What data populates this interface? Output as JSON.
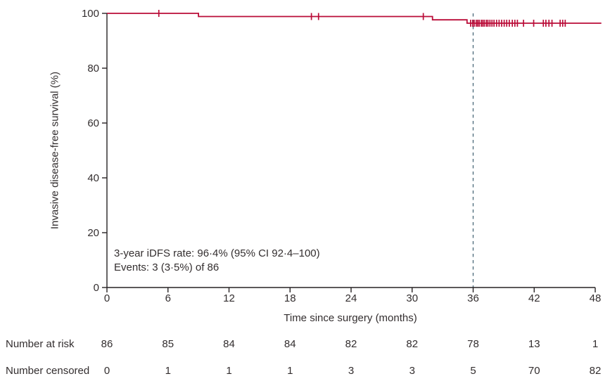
{
  "chart_data": {
    "type": "line",
    "subtype": "kaplan-meier-step",
    "title": "",
    "x_axis_label": "Time since surgery (months)",
    "y_axis_label": "Invasive disease-free survival (%)",
    "xlim": [
      0,
      48
    ],
    "ylim": [
      0,
      100
    ],
    "x_ticks": [
      0,
      6,
      12,
      18,
      24,
      30,
      36,
      42,
      48
    ],
    "y_ticks": [
      0,
      20,
      40,
      60,
      80,
      100
    ],
    "grid": false,
    "legend": "none",
    "annotations": {
      "line1": "3-year iDFS rate: 96·4% (95% CI 92·4–100)",
      "line2": "Events: 3 (3·5%) of 86"
    },
    "series": [
      {
        "name": "Invasive disease-free survival",
        "color": "#ba0c38",
        "step_points": [
          [
            0,
            100
          ],
          [
            9,
            100
          ],
          [
            9,
            98.85
          ],
          [
            32,
            98.85
          ],
          [
            32,
            97.65
          ],
          [
            35.4,
            97.65
          ],
          [
            35.4,
            96.4
          ],
          [
            48.6,
            96.4
          ]
        ],
        "censor_marks": [
          [
            5.1,
            100
          ],
          [
            20.1,
            98.85
          ],
          [
            20.8,
            98.85
          ],
          [
            31.1,
            98.85
          ],
          [
            35.75,
            96.4
          ],
          [
            35.95,
            96.4
          ],
          [
            36.1,
            96.4
          ],
          [
            36.3,
            96.4
          ],
          [
            36.45,
            96.4
          ],
          [
            36.6,
            96.4
          ],
          [
            36.8,
            96.4
          ],
          [
            36.95,
            96.4
          ],
          [
            37.1,
            96.4
          ],
          [
            37.3,
            96.4
          ],
          [
            37.45,
            96.4
          ],
          [
            37.65,
            96.4
          ],
          [
            37.85,
            96.4
          ],
          [
            38.05,
            96.4
          ],
          [
            38.3,
            96.4
          ],
          [
            38.55,
            96.4
          ],
          [
            38.8,
            96.4
          ],
          [
            39.05,
            96.4
          ],
          [
            39.3,
            96.4
          ],
          [
            39.55,
            96.4
          ],
          [
            39.85,
            96.4
          ],
          [
            40.1,
            96.4
          ],
          [
            40.35,
            96.4
          ],
          [
            40.95,
            96.4
          ],
          [
            41.95,
            96.4
          ],
          [
            42.9,
            96.4
          ],
          [
            43.15,
            96.4
          ],
          [
            43.45,
            96.4
          ],
          [
            43.75,
            96.4
          ],
          [
            44.55,
            96.4
          ],
          [
            44.8,
            96.4
          ],
          [
            45.05,
            96.4
          ]
        ]
      }
    ],
    "reference_line": {
      "x": 36,
      "style": "dashed",
      "color": "#53707f"
    },
    "risk_table": {
      "at_risk_label": "Number at risk",
      "at_risk_values": [
        86,
        85,
        84,
        84,
        82,
        82,
        78,
        13,
        1
      ],
      "censored_label": "Number censored",
      "censored_values": [
        0,
        1,
        1,
        1,
        3,
        3,
        5,
        70,
        82
      ]
    },
    "axis_color": "#262223",
    "text_color": "#332e2f"
  }
}
